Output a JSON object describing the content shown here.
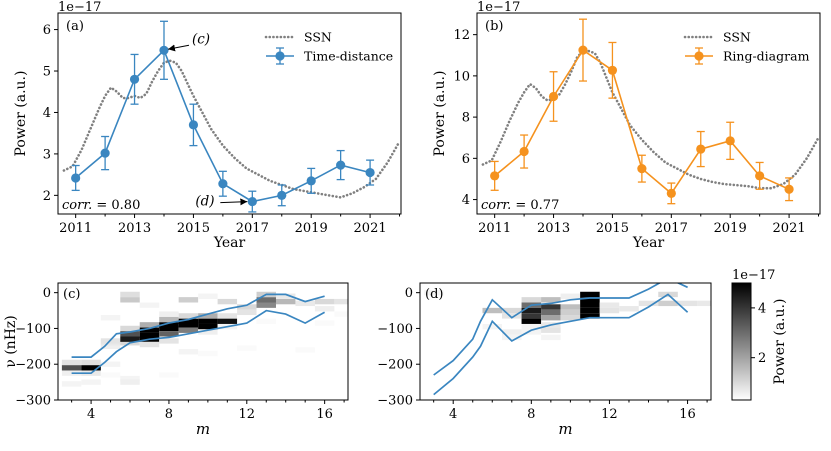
{
  "chart_data": [
    {
      "id": "a",
      "type": "line",
      "panel_label": "(a)",
      "offset_text": "1e−17",
      "ylabel": "Power (a.u.)",
      "xlabel": "Year",
      "xlim": [
        2010.4,
        2022.05
      ],
      "ylim": [
        1.55,
        6.4
      ],
      "xticks": [
        2011,
        2013,
        2015,
        2017,
        2019,
        2021
      ],
      "yticks": [
        2,
        3,
        4,
        5,
        6
      ],
      "legend": [
        "SSN",
        "Time-distance"
      ],
      "legend_position": "top-right",
      "corr_label": "corr.",
      "corr_value": " = 0.80",
      "series": [
        {
          "name": "SSN",
          "style": "dotted",
          "color": "#808080",
          "x": [
            2010.6,
            2010.9,
            2011.2,
            2011.5,
            2011.8,
            2012.0,
            2012.2,
            2012.4,
            2012.6,
            2012.8,
            2013.0,
            2013.2,
            2013.4,
            2013.6,
            2013.8,
            2014.0,
            2014.2,
            2014.4,
            2014.6,
            2014.8,
            2015.0,
            2015.3,
            2015.6,
            2016.0,
            2016.4,
            2016.8,
            2017.2,
            2017.6,
            2018.0,
            2018.4,
            2018.8,
            2019.2,
            2019.6,
            2020.0,
            2020.4,
            2020.8,
            2021.2,
            2021.6,
            2022.0
          ],
          "y": [
            2.6,
            2.7,
            3.1,
            3.6,
            4.1,
            4.4,
            4.6,
            4.5,
            4.35,
            4.35,
            4.4,
            4.35,
            4.45,
            4.75,
            5.0,
            5.2,
            5.25,
            5.2,
            5.0,
            4.7,
            4.4,
            4.0,
            3.6,
            3.2,
            2.9,
            2.65,
            2.5,
            2.35,
            2.25,
            2.15,
            2.1,
            2.05,
            2.0,
            1.95,
            2.05,
            2.2,
            2.4,
            2.8,
            3.3
          ]
        },
        {
          "name": "Time-distance",
          "style": "line-markers-errorbars",
          "color": "#3a86c0",
          "x": [
            2011,
            2012,
            2013,
            2014,
            2015,
            2016,
            2017,
            2018,
            2019,
            2020,
            2021
          ],
          "y": [
            2.42,
            3.02,
            4.8,
            5.5,
            3.7,
            2.28,
            1.85,
            2.0,
            2.35,
            2.73,
            2.55
          ],
          "err": [
            0.3,
            0.4,
            0.6,
            0.7,
            0.5,
            0.3,
            0.25,
            0.25,
            0.3,
            0.35,
            0.3
          ]
        }
      ],
      "annotations": [
        {
          "text": "(c)",
          "italic": true,
          "at_x": 2014,
          "at_y": 5.5
        },
        {
          "text": "(d)",
          "italic": true,
          "at_x": 2017,
          "at_y": 1.85
        }
      ]
    },
    {
      "id": "b",
      "type": "line",
      "panel_label": "(b)",
      "offset_text": "1e−17",
      "ylabel": "Power (a.u.)",
      "xlabel": "Year",
      "xlim": [
        2010.4,
        2022.05
      ],
      "ylim": [
        3.3,
        13.05
      ],
      "xticks": [
        2011,
        2013,
        2015,
        2017,
        2019,
        2021
      ],
      "yticks": [
        4,
        6,
        8,
        10,
        12
      ],
      "legend": [
        "SSN",
        "Ring-diagram"
      ],
      "legend_position": "top-right",
      "corr_label": "corr.",
      "corr_value": " = 0.77",
      "series": [
        {
          "name": "SSN",
          "style": "dotted",
          "color": "#808080",
          "x": [
            2010.6,
            2010.9,
            2011.2,
            2011.5,
            2011.8,
            2012.0,
            2012.2,
            2012.4,
            2012.6,
            2012.8,
            2013.0,
            2013.2,
            2013.4,
            2013.6,
            2013.8,
            2014.0,
            2014.2,
            2014.4,
            2014.6,
            2014.8,
            2015.0,
            2015.3,
            2015.6,
            2016.0,
            2016.4,
            2016.8,
            2017.2,
            2017.6,
            2018.0,
            2018.4,
            2018.8,
            2019.2,
            2019.6,
            2020.0,
            2020.4,
            2020.8,
            2021.2,
            2021.6,
            2022.0
          ],
          "y": [
            5.7,
            5.9,
            6.8,
            7.8,
            8.7,
            9.2,
            9.6,
            9.4,
            9.0,
            8.8,
            8.9,
            9.1,
            9.6,
            10.2,
            10.9,
            11.2,
            11.2,
            11.1,
            10.6,
            9.9,
            9.2,
            8.4,
            7.6,
            6.9,
            6.3,
            5.8,
            5.5,
            5.2,
            5.0,
            4.85,
            4.75,
            4.7,
            4.65,
            4.55,
            4.55,
            4.75,
            5.2,
            6.0,
            7.0
          ]
        },
        {
          "name": "Ring-diagram",
          "style": "line-markers-errorbars",
          "color": "#f5921e",
          "x": [
            2011,
            2012,
            2013,
            2014,
            2015,
            2016,
            2017,
            2018,
            2019,
            2020,
            2021
          ],
          "y": [
            5.15,
            6.33,
            9.0,
            11.25,
            10.27,
            5.5,
            4.3,
            6.45,
            6.85,
            5.15,
            4.5
          ],
          "err": [
            0.7,
            0.8,
            1.2,
            1.5,
            1.35,
            0.65,
            0.5,
            0.85,
            0.9,
            0.65,
            0.55
          ]
        }
      ]
    },
    {
      "id": "c",
      "type": "heatmap",
      "panel_label": "(c)",
      "xlabel": "m",
      "ylabel": "ν (nHz)",
      "xlim": [
        2.3,
        17.2
      ],
      "ylim": [
        -300,
        27
      ],
      "xticks": [
        4,
        8,
        12,
        16
      ],
      "yticks": [
        0,
        -100,
        -200,
        -300
      ],
      "cmap": "gray_r",
      "vmin": 0.3,
      "vmax": 5.0,
      "cell_height_nhz": 15,
      "cells": [
        [
          3,
          -210,
          3.5
        ],
        [
          4,
          -210,
          5.0
        ],
        [
          3,
          -195,
          0.8
        ],
        [
          4,
          -195,
          0.9
        ],
        [
          5,
          -200,
          0.5
        ],
        [
          3,
          -225,
          0.6
        ],
        [
          4,
          -225,
          0.7
        ],
        [
          5,
          -230,
          0.4
        ],
        [
          5,
          -150,
          0.6
        ],
        [
          5,
          -140,
          0.7
        ],
        [
          5,
          -135,
          0.8
        ],
        [
          6,
          -140,
          1.0
        ],
        [
          6,
          -130,
          4.5
        ],
        [
          6,
          -115,
          3.5
        ],
        [
          6,
          -100,
          1.0
        ],
        [
          7,
          -130,
          5.0
        ],
        [
          7,
          -120,
          5.0
        ],
        [
          7,
          -105,
          5.0
        ],
        [
          7,
          -90,
          1.8
        ],
        [
          7,
          -145,
          0.8
        ],
        [
          8,
          -100,
          5.0
        ],
        [
          8,
          -90,
          5.0
        ],
        [
          8,
          -115,
          3.2
        ],
        [
          8,
          -75,
          1.6
        ],
        [
          8,
          -60,
          0.6
        ],
        [
          8,
          -135,
          0.8
        ],
        [
          9,
          -90,
          5.0
        ],
        [
          9,
          -80,
          5.0
        ],
        [
          9,
          -105,
          2.7
        ],
        [
          9,
          -65,
          1.0
        ],
        [
          9,
          -20,
          1.2
        ],
        [
          10,
          -95,
          5.0
        ],
        [
          10,
          -80,
          5.0
        ],
        [
          10,
          -65,
          1.8
        ],
        [
          10,
          -110,
          0.6
        ],
        [
          11,
          -80,
          4.7
        ],
        [
          11,
          -65,
          0.8
        ],
        [
          11,
          -25,
          1.0
        ],
        [
          11,
          -95,
          0.5
        ],
        [
          12,
          -55,
          0.8
        ],
        [
          12,
          -40,
          1.0
        ],
        [
          13,
          -35,
          2.5
        ],
        [
          13,
          -20,
          3.0
        ],
        [
          13,
          -5,
          1.2
        ],
        [
          14,
          -25,
          1.6
        ],
        [
          14,
          -10,
          0.7
        ],
        [
          15,
          -30,
          0.7
        ],
        [
          16,
          -25,
          1.0
        ],
        [
          16,
          -45,
          0.6
        ],
        [
          17,
          -25,
          0.8
        ],
        [
          6,
          -20,
          1.3
        ],
        [
          6,
          -5,
          0.9
        ],
        [
          5,
          -70,
          0.5
        ],
        [
          3,
          -255,
          0.5
        ],
        [
          4,
          -250,
          0.5
        ],
        [
          9,
          -165,
          0.5
        ],
        [
          10,
          -170,
          0.4
        ],
        [
          7,
          -35,
          0.5
        ],
        [
          6,
          -240,
          0.5
        ],
        [
          6,
          -250,
          0.6
        ],
        [
          8,
          -230,
          0.4
        ],
        [
          15,
          -160,
          0.4
        ],
        [
          12,
          -155,
          0.4
        ],
        [
          16,
          -85,
          0.4
        ],
        [
          13,
          -80,
          0.4
        ],
        [
          17,
          -60,
          0.4
        ],
        [
          10,
          -10,
          0.5
        ]
      ],
      "band_upper": {
        "x": [
          3,
          4,
          4.7,
          5.3,
          6,
          7,
          8,
          9,
          10,
          11,
          12,
          13,
          14,
          15,
          16
        ],
        "y": [
          -180,
          -180,
          -150,
          -115,
          -110,
          -100,
          -85,
          -75,
          -60,
          -45,
          -35,
          -5,
          -5,
          -25,
          -10
        ]
      },
      "band_lower": {
        "x": [
          3,
          4,
          4.7,
          5.3,
          6,
          7,
          8,
          9,
          10,
          11,
          12,
          13,
          14,
          15,
          16
        ],
        "y": [
          -225,
          -225,
          -195,
          -165,
          -140,
          -130,
          -125,
          -115,
          -105,
          -95,
          -85,
          -50,
          -60,
          -85,
          -55
        ]
      }
    },
    {
      "id": "d",
      "type": "heatmap",
      "panel_label": "(d)",
      "xlabel": "m",
      "ylabel": "",
      "xlim": [
        2.3,
        17.2
      ],
      "ylim": [
        -300,
        27
      ],
      "xticks": [
        4,
        8,
        12,
        16
      ],
      "yticks": [
        0,
        -100,
        -200,
        -300
      ],
      "cmap": "gray_r",
      "vmin": 0.3,
      "vmax": 5.0,
      "cell_height_nhz": 15,
      "cells": [
        [
          3,
          0,
          0.5
        ],
        [
          6,
          -50,
          1.5
        ],
        [
          7,
          -50,
          1.0
        ],
        [
          7,
          -65,
          0.8
        ],
        [
          7,
          -110,
          0.6
        ],
        [
          8,
          -20,
          1.0
        ],
        [
          8,
          -35,
          3.0
        ],
        [
          8,
          -50,
          4.5
        ],
        [
          8,
          -65,
          4.0
        ],
        [
          8,
          -80,
          5.0
        ],
        [
          8,
          -95,
          0.5
        ],
        [
          8,
          -110,
          0.5
        ],
        [
          9,
          -20,
          1.5
        ],
        [
          9,
          -40,
          4.0
        ],
        [
          9,
          -55,
          3.0
        ],
        [
          9,
          -70,
          2.0
        ],
        [
          9,
          -90,
          0.7
        ],
        [
          9,
          -105,
          0.8
        ],
        [
          10,
          -40,
          1.5
        ],
        [
          10,
          -55,
          1.2
        ],
        [
          10,
          -70,
          1.0
        ],
        [
          10,
          -10,
          0.6
        ],
        [
          11,
          -5,
          5.0
        ],
        [
          11,
          -20,
          5.0
        ],
        [
          11,
          -35,
          5.0
        ],
        [
          11,
          -50,
          5.0
        ],
        [
          11,
          -65,
          5.0
        ],
        [
          12,
          -35,
          0.7
        ],
        [
          12,
          -50,
          0.8
        ],
        [
          13,
          -45,
          0.7
        ],
        [
          14,
          -30,
          0.8
        ],
        [
          15,
          -30,
          1.2
        ],
        [
          15,
          -5,
          1.0
        ],
        [
          16,
          -30,
          0.8
        ],
        [
          17,
          -30,
          0.7
        ],
        [
          6,
          -95,
          0.5
        ],
        [
          7,
          -125,
          0.5
        ],
        [
          9,
          -125,
          0.5
        ]
      ],
      "band_upper": {
        "x": [
          3,
          4,
          5,
          5.4,
          6,
          7,
          8,
          9,
          10,
          11,
          12,
          13,
          14,
          15,
          16
        ],
        "y": [
          -230,
          -190,
          -130,
          -80,
          -20,
          -70,
          -35,
          -30,
          -20,
          -15,
          -15,
          -15,
          10,
          40,
          15
        ]
      },
      "band_lower": {
        "x": [
          3,
          4,
          5,
          5.4,
          6,
          7,
          8,
          9,
          10,
          11,
          12,
          13,
          14,
          15,
          16
        ],
        "y": [
          -285,
          -240,
          -180,
          -150,
          -80,
          -135,
          -105,
          -90,
          -80,
          -70,
          -70,
          -70,
          -40,
          -5,
          -55
        ]
      }
    }
  ],
  "colorbar": {
    "offset_text": "1e−17",
    "label": "Power (a.u.)",
    "ticks": [
      2,
      4
    ],
    "range": [
      0.3,
      5.0
    ],
    "cmap": "gray_r"
  }
}
